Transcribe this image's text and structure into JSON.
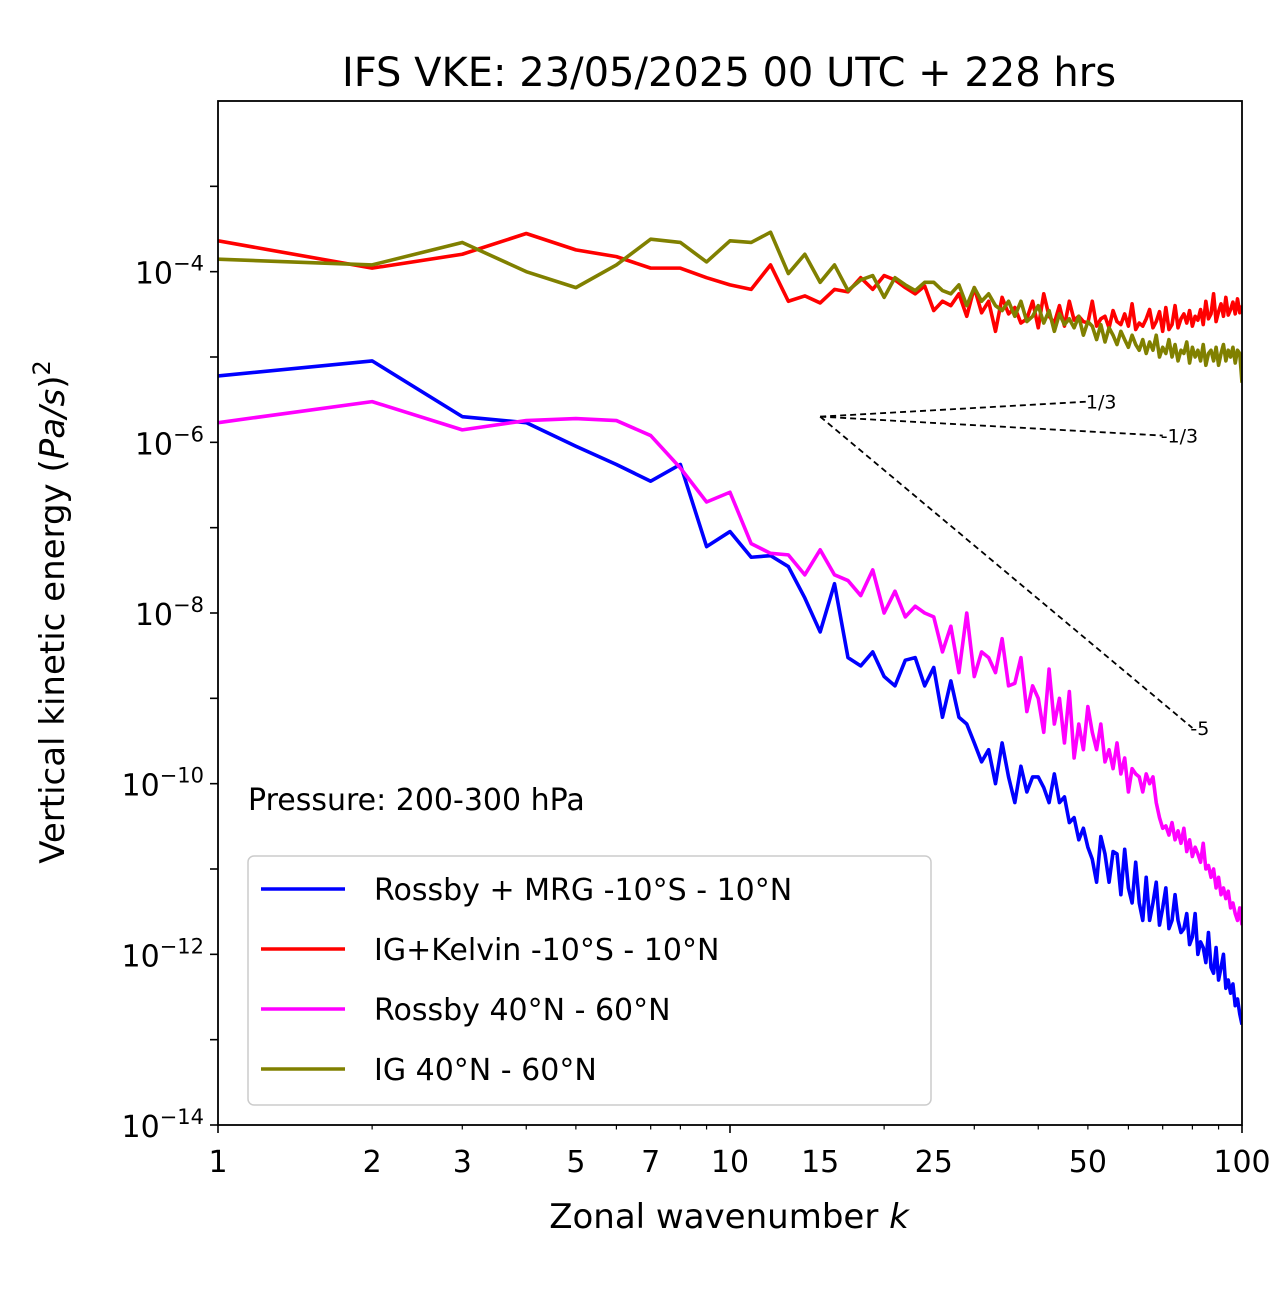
{
  "chart_data": {
    "type": "line",
    "title": "IFS VKE: 23/05/2025 00 UTC + 228 hrs",
    "xlabel": "Zonal wavenumber k",
    "ylabel": "Vertical kinetic energy (Pa/s)2",
    "xscale": "log",
    "yscale": "log",
    "xlim": [
      1,
      100
    ],
    "ylim": [
      1e-14,
      0.01
    ],
    "xticks": [
      1,
      2,
      3,
      5,
      7,
      10,
      15,
      25,
      50,
      100
    ],
    "xtick_labels": [
      "1",
      "2",
      "3",
      "5",
      "7",
      "10",
      "15",
      "25",
      "50",
      "100"
    ],
    "yticks": [
      1e-14,
      1e-12,
      1e-10,
      1e-08,
      1e-06,
      0.0001
    ],
    "ytick_labels": [
      {
        "base": "10",
        "exp": "−14"
      },
      {
        "base": "10",
        "exp": "−12"
      },
      {
        "base": "10",
        "exp": "−10"
      },
      {
        "base": "10",
        "exp": "−8"
      },
      {
        "base": "10",
        "exp": "−6"
      },
      {
        "base": "10",
        "exp": "−4"
      }
    ],
    "grid": false,
    "legend_position": "lower-left",
    "annotation": "Pressure: 200-300 hPa",
    "reference_slopes": [
      {
        "label": "1/3",
        "x": [
          15,
          50
        ],
        "y": [
          2e-06,
          3e-06
        ]
      },
      {
        "label": "-1/3",
        "x": [
          15,
          70
        ],
        "y": [
          2e-06,
          1.2e-06
        ]
      },
      {
        "label": "-5",
        "x": [
          15,
          80
        ],
        "y": [
          2e-06,
          4.5e-10
        ]
      }
    ],
    "series": [
      {
        "name": "Rossby + MRG -10°S - 10°N",
        "color": "#0000ff",
        "x": [
          1,
          2,
          3,
          4,
          5,
          6,
          7,
          8,
          9,
          10,
          11,
          12,
          13,
          14,
          15,
          16,
          17,
          18,
          19,
          20,
          21,
          22,
          23,
          24,
          25,
          26,
          27,
          28,
          29,
          30,
          31,
          32,
          33,
          34,
          35,
          36,
          37,
          38,
          39,
          40,
          41,
          42,
          43,
          44,
          45,
          46,
          47,
          48,
          49,
          50,
          51,
          52,
          53,
          54,
          55,
          56,
          57,
          58,
          59,
          60,
          61,
          62,
          63,
          64,
          65,
          66,
          67,
          68,
          69,
          70,
          71,
          72,
          73,
          74,
          75,
          76,
          77,
          78,
          79,
          80,
          81,
          82,
          83,
          84,
          85,
          86,
          87,
          88,
          89,
          90,
          91,
          92,
          93,
          94,
          95,
          96,
          97,
          98,
          99,
          100
        ],
        "y": [
          6e-06,
          9e-06,
          2e-06,
          1.7e-06,
          9e-07,
          5.5e-07,
          3.5e-07,
          5.5e-07,
          6e-08,
          9e-08,
          4.5e-08,
          4.7e-08,
          3.5e-08,
          1.5e-08,
          6e-09,
          2.2e-08,
          3e-09,
          2.4e-09,
          3.5e-09,
          1.8e-09,
          1.4e-09,
          2.8e-09,
          3e-09,
          1.4e-09,
          2.3e-09,
          6e-10,
          1.6e-09,
          6e-10,
          5e-10,
          3e-10,
          1.8e-10,
          2.5e-10,
          1e-10,
          3e-10,
          1.2e-10,
          6e-11,
          1.6e-10,
          8e-11,
          1.2e-10,
          1.2e-10,
          9e-11,
          6e-11,
          1.3e-10,
          6e-11,
          7e-11,
          3.5e-11,
          4e-11,
          2.2e-11,
          3e-11,
          1.8e-11,
          1.3e-11,
          7e-12,
          2.4e-11,
          1.5e-11,
          7e-12,
          1.6e-11,
          1.5e-11,
          5e-12,
          1.7e-11,
          6e-12,
          4e-12,
          1.2e-11,
          4e-12,
          2.5e-12,
          8e-12,
          2.5e-12,
          4e-12,
          7e-12,
          2.2e-12,
          3.5e-12,
          6e-12,
          2e-12,
          2.5e-12,
          5e-12,
          2.5e-12,
          1.8e-12,
          2e-12,
          3e-12,
          1.3e-12,
          1.6e-12,
          3e-12,
          1e-12,
          1.4e-12,
          1.2e-12,
          8e-13,
          1.8e-12,
          7e-13,
          6e-13,
          1.2e-12,
          5e-13,
          7e-13,
          1e-12,
          4e-13,
          5e-13,
          3.5e-13,
          4.5e-13,
          2.5e-13,
          3e-13,
          2e-13,
          1.5e-13
        ]
      },
      {
        "name": "IG+Kelvin -10°S - 10°N",
        "color": "#ff0000",
        "x": [
          1,
          2,
          3,
          4,
          5,
          6,
          7,
          8,
          9,
          10,
          11,
          12,
          13,
          14,
          15,
          16,
          17,
          18,
          19,
          20,
          21,
          22,
          23,
          24,
          25,
          26,
          27,
          28,
          29,
          30,
          31,
          32,
          33,
          34,
          35,
          36,
          37,
          38,
          39,
          40,
          41,
          42,
          43,
          44,
          45,
          46,
          47,
          48,
          49,
          50,
          51,
          52,
          53,
          54,
          55,
          56,
          57,
          58,
          59,
          60,
          61,
          62,
          63,
          64,
          65,
          66,
          67,
          68,
          69,
          70,
          71,
          72,
          73,
          74,
          75,
          76,
          77,
          78,
          79,
          80,
          81,
          82,
          83,
          84,
          85,
          86,
          87,
          88,
          89,
          90,
          91,
          92,
          93,
          94,
          95,
          96,
          97,
          98,
          99,
          100
        ],
        "y": [
          0.00023,
          0.00011,
          0.00016,
          0.00028,
          0.00018,
          0.00015,
          0.00011,
          0.00011,
          8.5e-05,
          7e-05,
          6.2e-05,
          0.00012,
          4.5e-05,
          5.2e-05,
          4.3e-05,
          6.2e-05,
          5.8e-05,
          8.5e-05,
          6.2e-05,
          9e-05,
          8e-05,
          6.5e-05,
          5.5e-05,
          6.8e-05,
          3.5e-05,
          4.5e-05,
          4e-05,
          5.5e-05,
          3e-05,
          6.5e-05,
          3.3e-05,
          4.5e-05,
          2e-05,
          5e-05,
          3.2e-05,
          3.8e-05,
          2.5e-05,
          2.8e-05,
          4.5e-05,
          2.2e-05,
          5.5e-05,
          3e-05,
          2.5e-05,
          4e-05,
          2.3e-05,
          4.5e-05,
          2.7e-05,
          3e-05,
          2.6e-05,
          2.5e-05,
          4.5e-05,
          2.3e-05,
          2.8e-05,
          3e-05,
          2.2e-05,
          3.5e-05,
          2.6e-05,
          2.4e-05,
          3.2e-05,
          2.3e-05,
          4.2e-05,
          2.1e-05,
          2.5e-05,
          2.3e-05,
          2.8e-05,
          3.6e-05,
          2.2e-05,
          2.6e-05,
          3.4e-05,
          2e-05,
          3.8e-05,
          2.1e-05,
          2.4e-05,
          4e-05,
          2.2e-05,
          2.8e-05,
          3.2e-05,
          2.5e-05,
          3.5e-05,
          2.3e-05,
          3e-05,
          2.7e-05,
          3.6e-05,
          2.4e-05,
          4.5e-05,
          2.8e-05,
          3.2e-05,
          5.5e-05,
          2.6e-05,
          3.4e-05,
          4.2e-05,
          3e-05,
          5e-05,
          3.1e-05,
          3.6e-05,
          4.4e-05,
          3.2e-05,
          4.8e-05,
          3.3e-05,
          4e-05
        ]
      },
      {
        "name": "Rossby 40°N - 60°N",
        "color": "#ff00ff",
        "x": [
          1,
          2,
          3,
          4,
          5,
          6,
          7,
          8,
          9,
          10,
          11,
          12,
          13,
          14,
          15,
          16,
          17,
          18,
          19,
          20,
          21,
          22,
          23,
          24,
          25,
          26,
          27,
          28,
          29,
          30,
          31,
          32,
          33,
          34,
          35,
          36,
          37,
          38,
          39,
          40,
          41,
          42,
          43,
          44,
          45,
          46,
          47,
          48,
          49,
          50,
          51,
          52,
          53,
          54,
          55,
          56,
          57,
          58,
          59,
          60,
          61,
          62,
          63,
          64,
          65,
          66,
          67,
          68,
          69,
          70,
          71,
          72,
          73,
          74,
          75,
          76,
          77,
          78,
          79,
          80,
          81,
          82,
          83,
          84,
          85,
          86,
          87,
          88,
          89,
          90,
          91,
          92,
          93,
          94,
          95,
          96,
          97,
          98,
          99,
          100
        ],
        "y": [
          1.7e-06,
          3e-06,
          1.4e-06,
          1.8e-06,
          1.9e-06,
          1.8e-06,
          1.2e-06,
          5e-07,
          2e-07,
          2.6e-07,
          6.5e-08,
          5e-08,
          4.8e-08,
          2.8e-08,
          5.5e-08,
          2.8e-08,
          2.4e-08,
          1.6e-08,
          3.2e-08,
          1e-08,
          1.8e-08,
          9e-09,
          1.2e-08,
          1e-08,
          9e-09,
          3.5e-09,
          7e-09,
          2e-09,
          1e-08,
          1.8e-09,
          3.5e-09,
          3e-09,
          2e-09,
          5e-09,
          1.4e-09,
          1.5e-09,
          3e-09,
          7e-10,
          1.4e-09,
          1e-09,
          4e-10,
          2.2e-09,
          5e-10,
          1e-09,
          3e-10,
          1.2e-09,
          2e-10,
          5e-10,
          2.5e-10,
          8e-10,
          4e-10,
          2.5e-10,
          5e-10,
          1.8e-10,
          2.5e-10,
          1.5e-10,
          3e-10,
          1.3e-10,
          2e-10,
          8e-11,
          1.5e-10,
          1.3e-10,
          1.2e-10,
          8e-11,
          1.3e-10,
          1e-10,
          1.2e-10,
          6e-11,
          4e-11,
          3e-11,
          3.2e-11,
          2.5e-11,
          3.5e-11,
          2.2e-11,
          2.8e-11,
          2e-11,
          3e-11,
          1.6e-11,
          2.2e-11,
          1.4e-11,
          1.8e-11,
          1.5e-11,
          1.2e-11,
          2e-11,
          1e-11,
          1.1e-11,
          8e-12,
          1e-11,
          6e-12,
          8e-12,
          5e-12,
          6e-12,
          4.5e-12,
          5.5e-12,
          3.5e-12,
          4e-12,
          3e-12,
          2.5e-12,
          3.5e-12,
          2.2e-12
        ]
      },
      {
        "name": "IG 40°N - 60°N",
        "color": "#808000",
        "x": [
          1,
          2,
          3,
          4,
          5,
          6,
          7,
          8,
          9,
          10,
          11,
          12,
          13,
          14,
          15,
          16,
          17,
          18,
          19,
          20,
          21,
          22,
          23,
          24,
          25,
          26,
          27,
          28,
          29,
          30,
          31,
          32,
          33,
          34,
          35,
          36,
          37,
          38,
          39,
          40,
          41,
          42,
          43,
          44,
          45,
          46,
          47,
          48,
          49,
          50,
          51,
          52,
          53,
          54,
          55,
          56,
          57,
          58,
          59,
          60,
          61,
          62,
          63,
          64,
          65,
          66,
          67,
          68,
          69,
          70,
          71,
          72,
          73,
          74,
          75,
          76,
          77,
          78,
          79,
          80,
          81,
          82,
          83,
          84,
          85,
          86,
          87,
          88,
          89,
          90,
          91,
          92,
          93,
          94,
          95,
          96,
          97,
          98,
          99,
          100
        ],
        "y": [
          0.00014,
          0.00012,
          0.00022,
          0.0001,
          6.5e-05,
          0.00012,
          0.00024,
          0.00022,
          0.00013,
          0.00023,
          0.00022,
          0.00029,
          9.5e-05,
          0.00016,
          7.5e-05,
          0.00012,
          6e-05,
          8e-05,
          9e-05,
          5e-05,
          8.5e-05,
          7e-05,
          6e-05,
          7.5e-05,
          7.5e-05,
          6e-05,
          5.5e-05,
          7e-05,
          4e-05,
          6.5e-05,
          4.5e-05,
          5.5e-05,
          4e-05,
          3.5e-05,
          4.5e-05,
          3e-05,
          4.5e-05,
          2.6e-05,
          3e-05,
          4e-05,
          2.5e-05,
          3.5e-05,
          2e-05,
          3.2e-05,
          2.4e-05,
          2.8e-05,
          2.2e-05,
          3e-05,
          1.8e-05,
          2.6e-05,
          2.3e-05,
          1.6e-05,
          2.4e-05,
          1.5e-05,
          2.2e-05,
          1.8e-05,
          1.4e-05,
          2e-05,
          1.6e-05,
          1.3e-05,
          1.8e-05,
          1.4e-05,
          1.2e-05,
          1.6e-05,
          1.1e-05,
          1.5e-05,
          1.2e-05,
          1.8e-05,
          1e-05,
          1.3e-05,
          1.1e-05,
          1.6e-05,
          1e-05,
          1.4e-05,
          9e-06,
          1.2e-05,
          1.1e-05,
          1.5e-05,
          8.5e-06,
          1.3e-05,
          1e-05,
          1.2e-05,
          9e-06,
          1.4e-05,
          8e-06,
          1.1e-05,
          1.2e-05,
          9e-06,
          1.3e-05,
          8e-06,
          1.1e-05,
          1.4e-05,
          9e-06,
          1.2e-05,
          1e-05,
          1.3e-05,
          8.5e-06,
          1.2e-05,
          1.1e-05,
          5e-06
        ]
      }
    ]
  }
}
